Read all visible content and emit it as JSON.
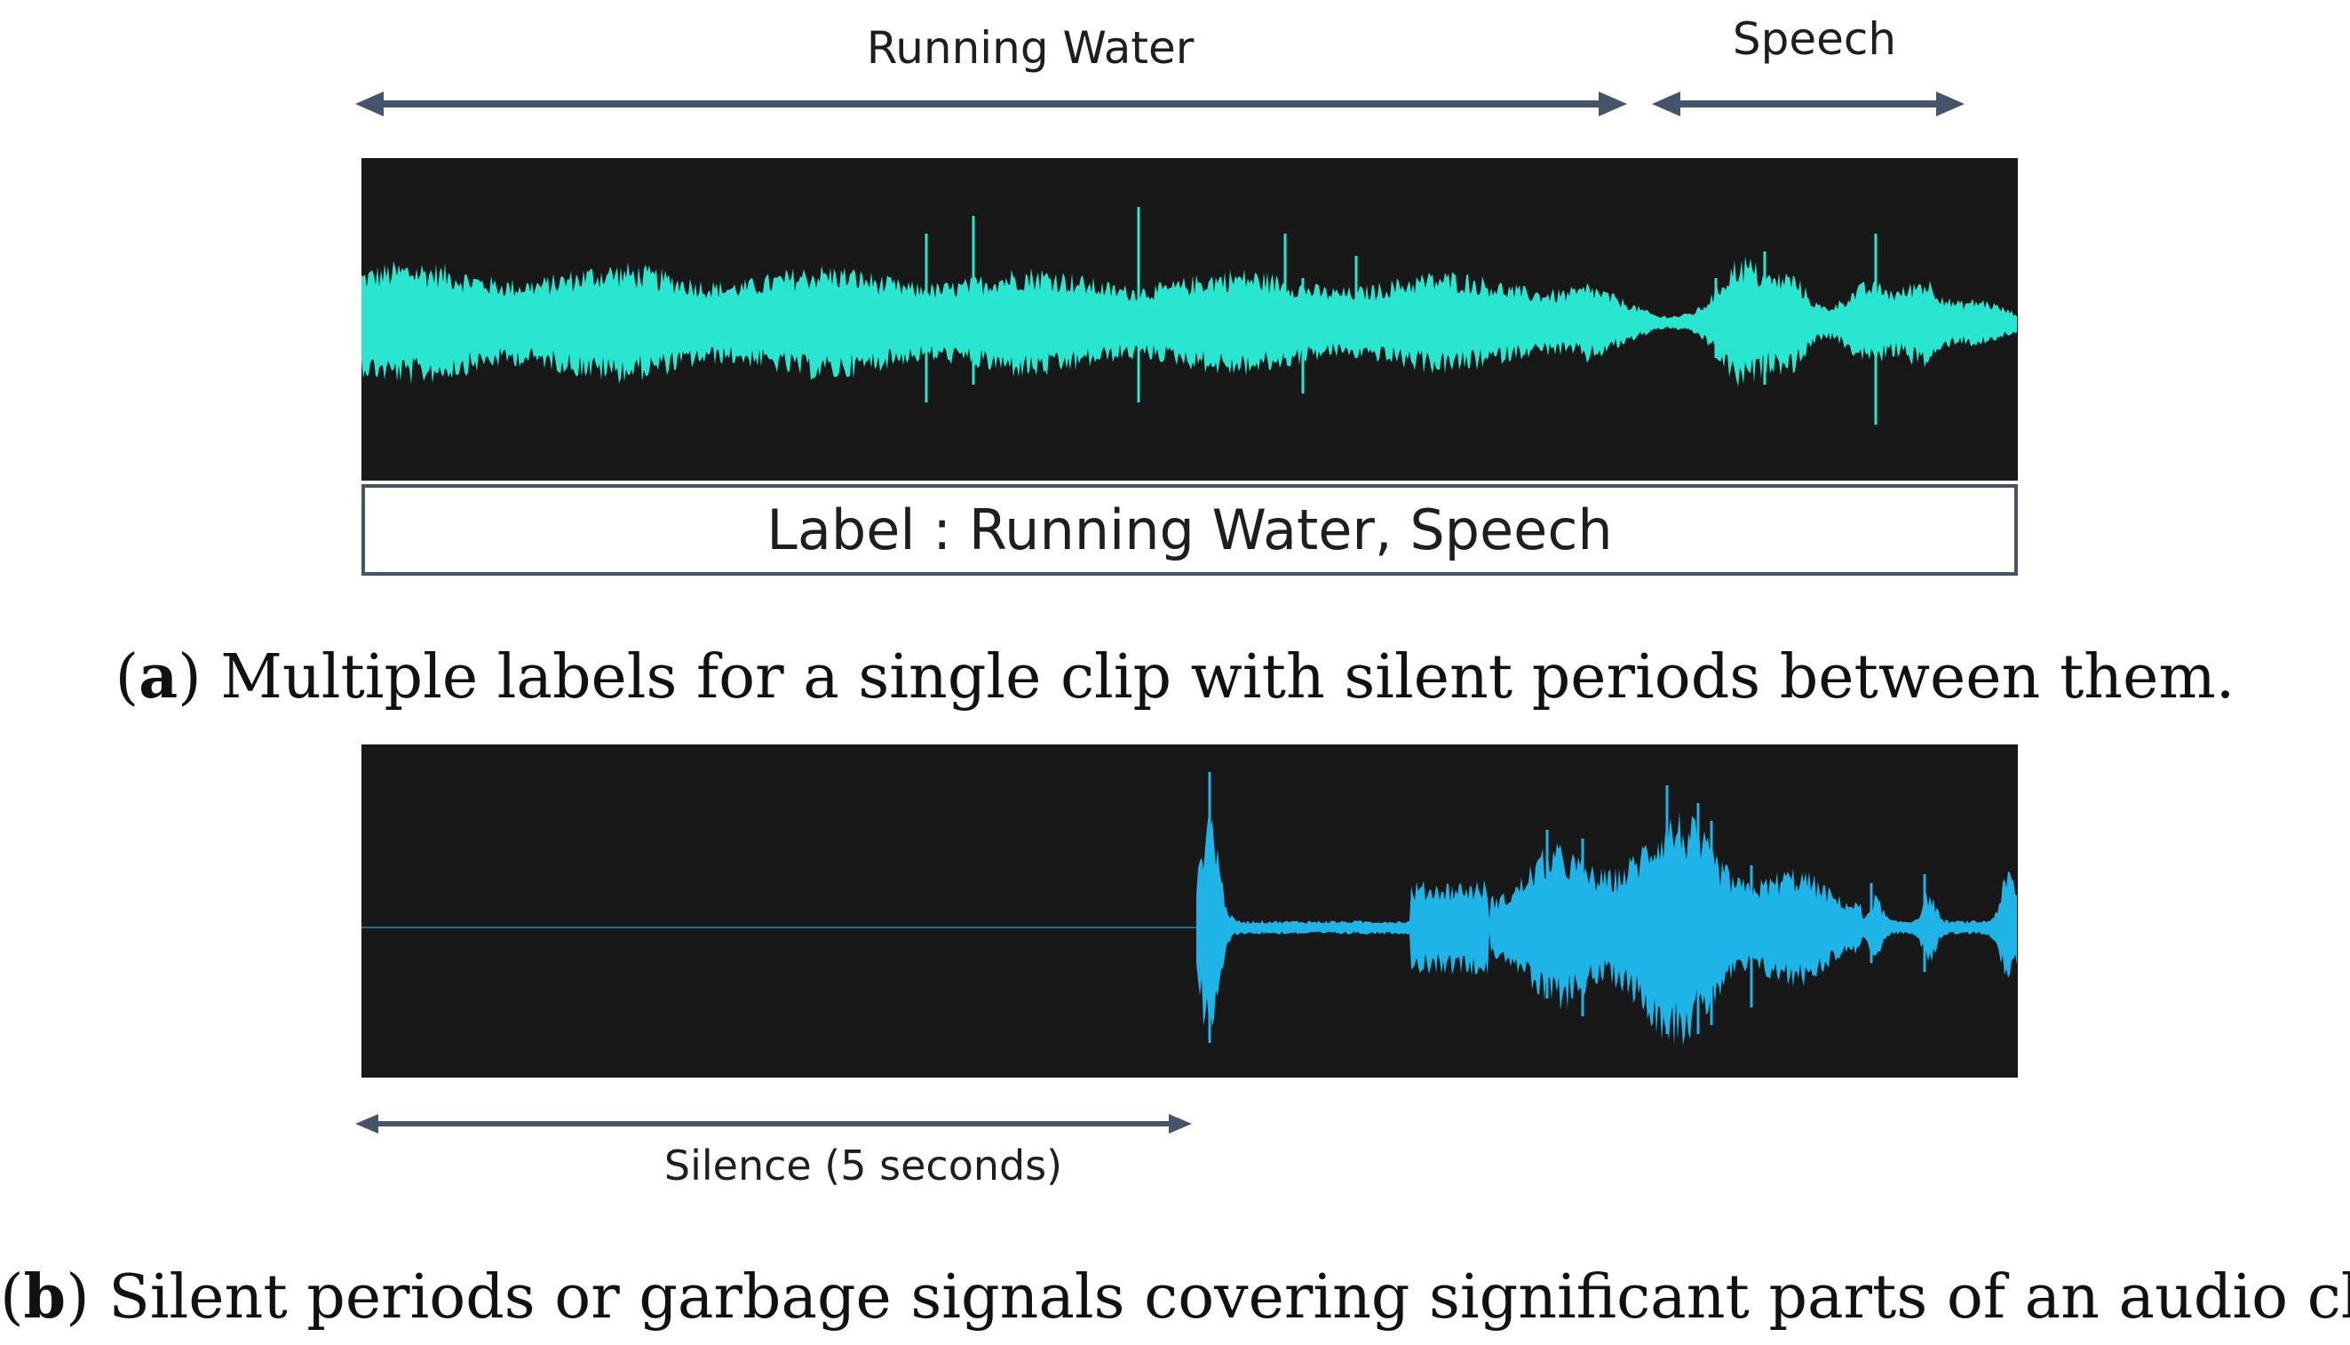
{
  "panel_a": {
    "segments": [
      {
        "label": "Running Water"
      },
      {
        "label": "Speech"
      }
    ],
    "label_box": "Label : Running Water, Speech",
    "caption_tag": "a",
    "caption_text": " Multiple labels for a single clip with silent periods between them.",
    "waveform_color": "#28e6cf"
  },
  "panel_b": {
    "segments": [
      {
        "label": "Silence (5 seconds)"
      }
    ],
    "caption_tag": "b",
    "caption_text": " Silent periods or garbage signals covering significant parts of an audio clip.",
    "waveform_color": "#1fb4e8"
  },
  "colors": {
    "arrow": "#44546a",
    "panel_bg": "#181818"
  }
}
